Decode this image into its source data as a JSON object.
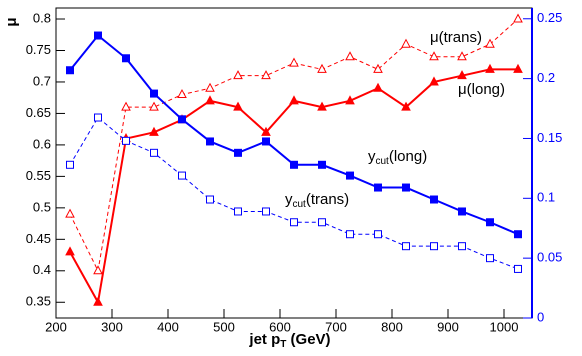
{
  "chart_data": {
    "type": "line",
    "x_label": {
      "text": "jet p",
      "sub": "T",
      "after": " (GeV)"
    },
    "y_label": "μ",
    "x": [
      225,
      275,
      325,
      375,
      425,
      475,
      525,
      575,
      625,
      675,
      725,
      775,
      825,
      875,
      925,
      975,
      1025
    ],
    "xlim": [
      200,
      1050
    ],
    "xticks": [
      200,
      300,
      400,
      500,
      600,
      700,
      800,
      900,
      1000
    ],
    "ylim": [
      0.325,
      0.8175
    ],
    "yticks": [
      0.35,
      0.4,
      0.45,
      0.5,
      0.55,
      0.6,
      0.65,
      0.7,
      0.75,
      0.8
    ],
    "y2lim": [
      0,
      0.259
    ],
    "y2ticks": [
      0,
      0.05,
      0.1,
      0.15,
      0.2,
      0.25
    ],
    "y2color": "#0000ff",
    "series": [
      {
        "label": {
          "text": "μ(trans)"
        },
        "color": "#ff0000",
        "dashed": true,
        "marker": "open-triangle",
        "values": [
          0.49,
          0.4,
          0.66,
          0.66,
          0.68,
          0.69,
          0.71,
          0.71,
          0.73,
          0.72,
          0.74,
          0.72,
          0.76,
          0.74,
          0.74,
          0.76,
          0.8
        ]
      },
      {
        "label": {
          "text": "μ(long)"
        },
        "color": "#ff0000",
        "dashed": false,
        "marker": "filled-triangle",
        "values": [
          0.43,
          0.35,
          0.61,
          0.62,
          0.64,
          0.67,
          0.66,
          0.62,
          0.67,
          0.66,
          0.67,
          0.69,
          0.66,
          0.7,
          0.71,
          0.72,
          0.72
        ]
      },
      {
        "label": {
          "text": "y",
          "sub": "cut",
          "after": "(long)"
        },
        "color": "#0000ff",
        "dashed": false,
        "marker": "filled-square",
        "axis": "y2",
        "values": [
          0.207,
          0.236,
          0.217,
          0.1875,
          0.166,
          0.1475,
          0.138,
          0.1475,
          0.128,
          0.128,
          0.119,
          0.109,
          0.109,
          0.099,
          0.089,
          0.08,
          0.07
        ]
      },
      {
        "label": {
          "text": "y",
          "sub": "cut",
          "after": "(trans)"
        },
        "color": "#0000ff",
        "dashed": true,
        "marker": "open-square",
        "axis": "y2",
        "values": [
          0.128,
          0.1675,
          0.148,
          0.138,
          0.119,
          0.099,
          0.089,
          0.089,
          0.08,
          0.08,
          0.07,
          0.07,
          0.06,
          0.06,
          0.06,
          0.05,
          0.041
        ]
      }
    ]
  }
}
